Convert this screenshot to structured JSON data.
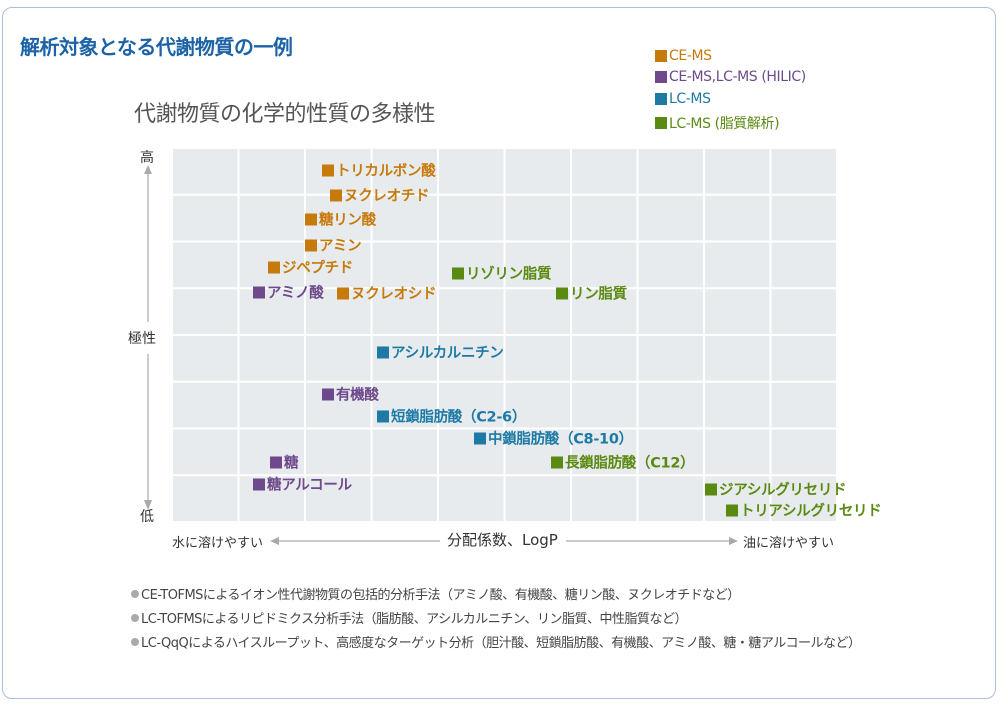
{
  "title": "解析対象となる代謝物質の一例",
  "subtitle": "代謝物質の化学的性質の多様性",
  "colors": {
    "ce_ms": "#c77a0c",
    "hilic": "#6e4a8c",
    "lc_ms": "#1d7aa5",
    "lipid": "#5b8a12",
    "title": "#1b62a6"
  },
  "legend": [
    "CE-MS",
    "CE-MS,LC-MS (HILIC)",
    "LC-MS",
    "LC-MS (脂質解析)"
  ],
  "y_axis": {
    "high": "高",
    "label": "極性",
    "low": "低"
  },
  "x_axis": {
    "left": "水に溶けやすい",
    "label": "分配係数、LogP",
    "right": "油に溶けやすい"
  },
  "metabolites": [
    "トリカルボン酸",
    "ヌクレオチド",
    "糖リン酸",
    "アミン",
    "ジペプチド",
    "リゾリン脂質",
    "アミノ酸",
    "ヌクレオシド",
    "リン脂質",
    "アシルカルニチン",
    "有機酸",
    "短鎖脂肪酸（C2-6）",
    "中鎖脂肪酸（C8-10）",
    "長鎖脂肪酸（C12）",
    "糖",
    "糖アルコール",
    "ジアシルグリセリド",
    "トリアシルグリセリド"
  ],
  "notes": [
    "CE-TOFMSによるイオン性代謝物質の包括的分析手法（アミノ酸、有機酸、糖リン酸、ヌクレオチドなど）",
    "LC-TOFMSによるリピドミクス分析手法（脂肪酸、アシルカルニチン、リン脂質、中性脂質など）",
    "LC-QqQによるハイスループット、高感度なターゲット分析（胆汁酸、短鎖脂肪酸、有機酸、アミノ酸、糖・糖アルコールなど）"
  ]
}
